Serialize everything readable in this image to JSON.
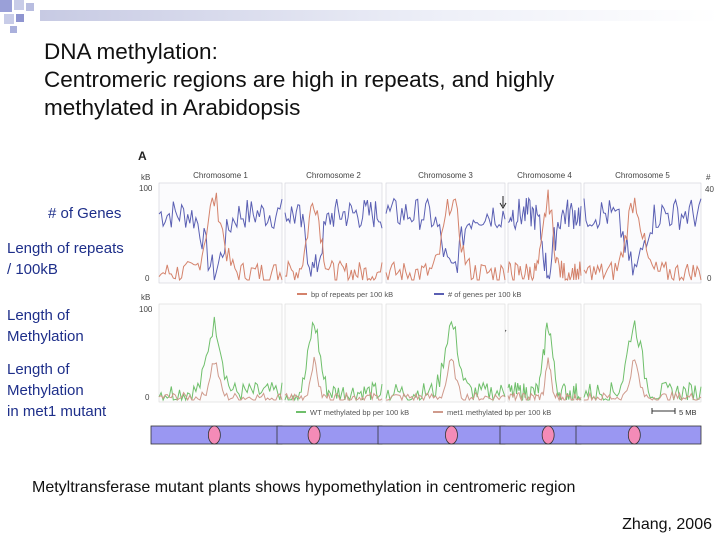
{
  "slide": {
    "title_lines": [
      "DNA methylation:",
      "Centromeric regions are high in repeats, and highly",
      "methylated in Arabidopsis"
    ],
    "row_labels": {
      "genes": "# of Genes",
      "repeats_line1": "Length of repeats",
      "repeats_line2": "/ 100kB",
      "meth_line1": "Length of",
      "meth_line2": "Methylation",
      "mut_line1": "Length of",
      "mut_line2": "Methylation",
      "mut_line3": "in met1 mutant"
    },
    "caption": "Metyltransferase mutant plants shows hypomethylation in centromeric region",
    "citation": "Zhang, 2006"
  },
  "figure": {
    "panel_letter": "A",
    "chromosomes": [
      "Chromosome 1",
      "Chromosome 2",
      "Chromosome 3",
      "Chromosome 4",
      "Chromosome 5"
    ],
    "top_axis": {
      "unit_left": "kB",
      "unit_right": "#",
      "left_ticks": [
        "100",
        "0"
      ],
      "right_ticks": [
        "40",
        "0"
      ]
    },
    "top_legend": [
      "bp of repeats per 100 kB",
      "# of genes per 100 kB"
    ],
    "bottom_axis": {
      "unit_left": "kB",
      "left_ticks": [
        "100",
        "0"
      ]
    },
    "bottom_legend": [
      "WT methylated bp per 100 kB",
      "met1 methylated bp per 100 kB"
    ],
    "scale_bar": "5 MB",
    "colors": {
      "genes": "#5a5fb3",
      "repeats": "#d4826b",
      "wt_methylation": "#6fbf6b",
      "met1_methylation": "#cf9a8c",
      "chrom_fill": "#9a97f2",
      "centromere": "#f48bb7"
    }
  }
}
